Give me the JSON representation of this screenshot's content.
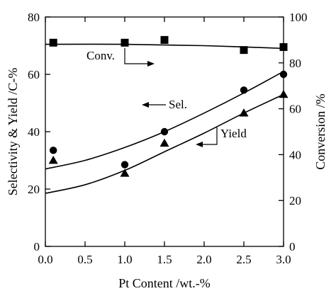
{
  "chart_data": {
    "type": "scatter",
    "xlabel": "Pt Content /wt.-%",
    "ylabel_left": "Selectivity & Yield /C-%",
    "ylabel_right": "Conversion /%",
    "xlim": [
      0,
      3
    ],
    "ylim_left": [
      0,
      80
    ],
    "ylim_right": [
      0,
      100
    ],
    "x_ticks": [
      "0.0",
      "0.5",
      "1.0",
      "1.5",
      "2.0",
      "2.5",
      "3.0"
    ],
    "y_ticks_left": [
      "0",
      "20",
      "40",
      "60",
      "80"
    ],
    "y_ticks_right": [
      "0",
      "20",
      "40",
      "60",
      "80",
      "100"
    ],
    "grid": false,
    "series": [
      {
        "name": "Conv.",
        "axis": "right",
        "marker": "square",
        "x": [
          0.1,
          1.0,
          1.5,
          2.5,
          3.0
        ],
        "y": [
          88.8,
          88.8,
          90.0,
          85.6,
          86.9
        ],
        "fit": {
          "x": [
            0.0,
            1.0,
            2.0,
            3.0
          ],
          "y": [
            88.1,
            88.1,
            87.5,
            86.3
          ]
        }
      },
      {
        "name": "Sel.",
        "axis": "left",
        "marker": "circle",
        "x": [
          0.1,
          1.0,
          1.5,
          2.5,
          3.0
        ],
        "y": [
          33.5,
          28.5,
          40.0,
          54.5,
          60.0
        ],
        "fit": {
          "x": [
            0.0,
            0.5,
            1.0,
            1.5,
            2.0,
            2.5,
            3.0
          ],
          "y": [
            27.0,
            30.0,
            34.5,
            40.0,
            46.5,
            53.5,
            61.0
          ]
        }
      },
      {
        "name": "Yield",
        "axis": "left",
        "marker": "triangle",
        "x": [
          0.1,
          1.0,
          1.5,
          2.5,
          3.0
        ],
        "y": [
          30.0,
          25.5,
          36.0,
          46.5,
          53.0
        ],
        "fit": {
          "x": [
            0.0,
            0.5,
            1.0,
            1.5,
            2.0,
            2.5,
            3.0
          ],
          "y": [
            18.5,
            21.5,
            26.5,
            33.0,
            39.5,
            46.5,
            53.0
          ]
        }
      }
    ],
    "annotations": [
      {
        "text": "Conv.",
        "points_to": "right"
      },
      {
        "text": "Sel.",
        "points_to": "left"
      },
      {
        "text": "Yield",
        "points_to": "left"
      }
    ]
  }
}
